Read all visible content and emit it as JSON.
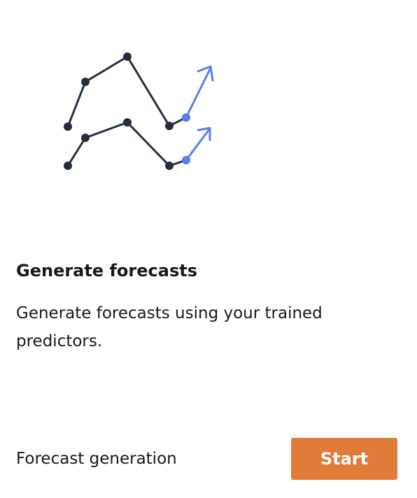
{
  "card": {
    "title": "Generate forecasts",
    "description": "Generate forecasts using your trained predictors.",
    "footer_label": "Forecast generation",
    "start_label": "Start"
  },
  "illustration": {
    "icon": "forecast-trend-lines-icon",
    "history_color": "#232f3e",
    "forecast_color": "#5a7fea"
  },
  "colors": {
    "primary_button": "#e07b39",
    "text": "#16191f"
  }
}
